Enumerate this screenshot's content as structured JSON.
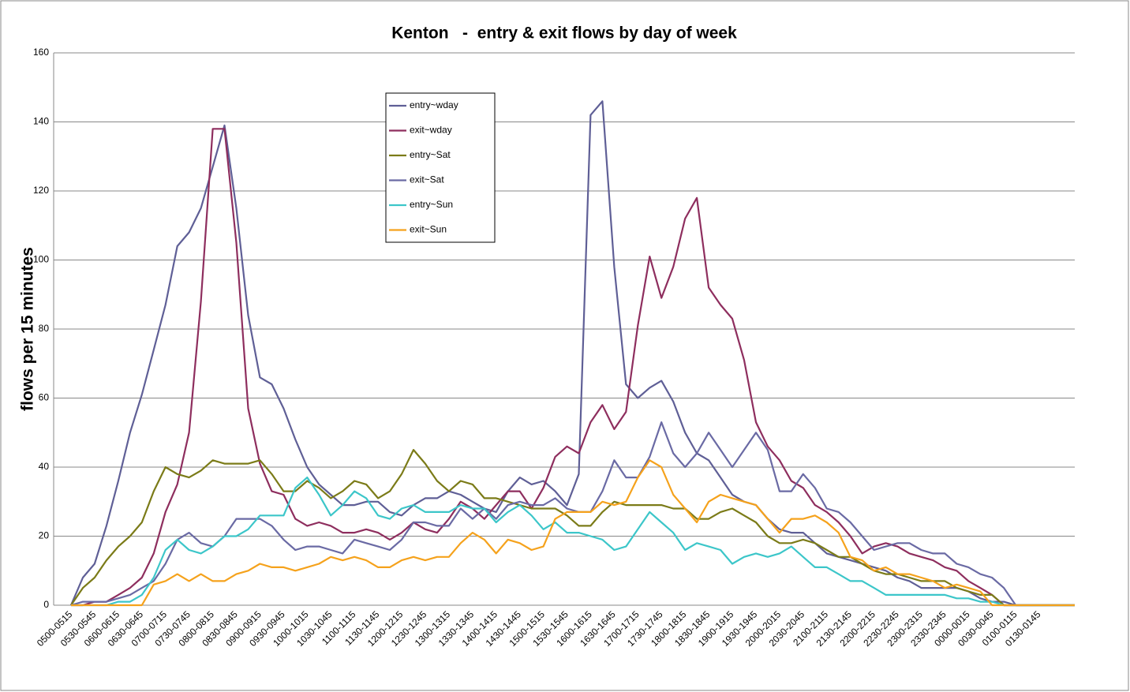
{
  "chart_data": {
    "type": "line",
    "title": "Kenton   -  entry & exit flows by day of week",
    "y_label": "flows per 15 minutes",
    "categories": [
      "0500-0515",
      null,
      "0530-0545",
      null,
      "0600-0615",
      null,
      "0630-0645",
      null,
      "0700-0715",
      null,
      "0730-0745",
      null,
      "0800-0815",
      null,
      "0830-0845",
      null,
      "0900-0915",
      null,
      "0930-0945",
      null,
      "1000-1015",
      null,
      "1030-1045",
      null,
      "1100-1115",
      null,
      "1130-1145",
      null,
      "1200-1215",
      null,
      "1230-1245",
      null,
      "1300-1315",
      null,
      "1330-1345",
      null,
      "1400-1415",
      null,
      "1430-1445",
      null,
      "1500-1515",
      null,
      "1530-1545",
      null,
      "1600-1615",
      null,
      "1630-1645",
      null,
      "1700-1715",
      null,
      "1730-1745",
      null,
      "1800-1815",
      null,
      "1830-1845",
      null,
      "1900-1915",
      null,
      "1930-1945",
      null,
      "2000-2015",
      null,
      "2030-2045",
      null,
      "2100-2115",
      null,
      "2130-2145",
      null,
      "2200-2215",
      null,
      "2230-2245",
      null,
      "2300-2315",
      null,
      "2330-2345",
      null,
      "0000-0015",
      null,
      "0030-0045",
      null,
      "0100-0115",
      null,
      "0130-0145",
      null,
      null,
      null
    ],
    "series": [
      {
        "name": "entry~wday",
        "color": "#5f5f96",
        "values": [
          0,
          8,
          12,
          23,
          36,
          50,
          61,
          74,
          87,
          104,
          108,
          115,
          127,
          139,
          115,
          84,
          66,
          64,
          57,
          48,
          40,
          35,
          32,
          29,
          29,
          30,
          30,
          27,
          26,
          29,
          31,
          31,
          33,
          32,
          30,
          28,
          27,
          33,
          37,
          35,
          36,
          33,
          29,
          38,
          142,
          146,
          98,
          64,
          60,
          63,
          65,
          59,
          50,
          44,
          42,
          37,
          32,
          30,
          29,
          25,
          22,
          21,
          21,
          18,
          15,
          14,
          13,
          12,
          11,
          10,
          8,
          7,
          5,
          5,
          5,
          5,
          4,
          2,
          1,
          1,
          0,
          0,
          0,
          0,
          0,
          0
        ]
      },
      {
        "name": "exit~wday",
        "color": "#8e2e5e",
        "values": [
          0,
          0,
          1,
          1,
          3,
          5,
          8,
          15,
          27,
          35,
          50,
          88,
          138,
          138,
          105,
          57,
          41,
          33,
          32,
          25,
          23,
          24,
          23,
          21,
          21,
          22,
          21,
          19,
          21,
          24,
          22,
          21,
          25,
          30,
          28,
          25,
          29,
          33,
          33,
          28,
          34,
          43,
          46,
          44,
          53,
          58,
          51,
          56,
          81,
          101,
          89,
          98,
          112,
          118,
          92,
          87,
          83,
          71,
          53,
          46,
          42,
          36,
          34,
          29,
          27,
          24,
          20,
          15,
          17,
          18,
          17,
          15,
          14,
          13,
          11,
          10,
          7,
          5,
          3,
          0,
          0,
          0,
          0,
          0,
          0,
          0
        ]
      },
      {
        "name": "entry~Sat",
        "color": "#7b7b18",
        "values": [
          0,
          5,
          8,
          13,
          17,
          20,
          24,
          33,
          40,
          38,
          37,
          39,
          42,
          41,
          41,
          41,
          42,
          38,
          33,
          33,
          36,
          34,
          31,
          33,
          36,
          35,
          31,
          33,
          38,
          45,
          41,
          36,
          33,
          36,
          35,
          31,
          31,
          30,
          29,
          28,
          28,
          28,
          26,
          23,
          23,
          27,
          30,
          29,
          29,
          29,
          29,
          28,
          28,
          25,
          25,
          27,
          28,
          26,
          24,
          20,
          18,
          18,
          19,
          18,
          16,
          14,
          14,
          12,
          10,
          9,
          9,
          8,
          7,
          7,
          7,
          5,
          4,
          3,
          3,
          0,
          0,
          0,
          0,
          0,
          0,
          0
        ]
      },
      {
        "name": "exit~Sat",
        "color": "#6a6aa4",
        "values": [
          0,
          1,
          1,
          1,
          2,
          3,
          5,
          7,
          12,
          19,
          21,
          18,
          17,
          20,
          25,
          25,
          25,
          23,
          19,
          16,
          17,
          17,
          16,
          15,
          19,
          18,
          17,
          16,
          19,
          24,
          24,
          23,
          23,
          28,
          25,
          28,
          25,
          29,
          30,
          29,
          29,
          31,
          28,
          27,
          27,
          33,
          42,
          37,
          37,
          43,
          53,
          44,
          40,
          44,
          50,
          45,
          40,
          45,
          50,
          45,
          33,
          33,
          38,
          34,
          28,
          27,
          24,
          20,
          16,
          17,
          18,
          18,
          16,
          15,
          15,
          12,
          11,
          9,
          8,
          5,
          0,
          0,
          0,
          0,
          0,
          0
        ]
      },
      {
        "name": "entry~Sun",
        "color": "#3cc6c9",
        "values": [
          0,
          0,
          0,
          0,
          1,
          1,
          3,
          8,
          16,
          19,
          16,
          15,
          17,
          20,
          20,
          22,
          26,
          26,
          26,
          34,
          37,
          32,
          26,
          29,
          33,
          31,
          26,
          25,
          28,
          29,
          27,
          27,
          27,
          29,
          28,
          28,
          24,
          27,
          29,
          26,
          22,
          24,
          21,
          21,
          20,
          19,
          16,
          17,
          22,
          27,
          24,
          21,
          16,
          18,
          17,
          16,
          12,
          14,
          15,
          14,
          15,
          17,
          14,
          11,
          11,
          9,
          7,
          7,
          5,
          3,
          3,
          3,
          3,
          3,
          3,
          2,
          2,
          1,
          1,
          0,
          0,
          0,
          0,
          0,
          0,
          0
        ]
      },
      {
        "name": "exit~Sun",
        "color": "#f5a21c",
        "values": [
          0,
          0,
          0,
          0,
          0,
          0,
          0,
          6,
          7,
          9,
          7,
          9,
          7,
          7,
          9,
          10,
          12,
          11,
          11,
          10,
          11,
          12,
          14,
          13,
          14,
          13,
          11,
          11,
          13,
          14,
          13,
          14,
          14,
          18,
          21,
          19,
          15,
          19,
          18,
          16,
          17,
          25,
          27,
          27,
          27,
          30,
          29,
          30,
          37,
          42,
          40,
          32,
          28,
          24,
          30,
          32,
          31,
          30,
          29,
          25,
          21,
          25,
          25,
          26,
          24,
          21,
          14,
          13,
          10,
          11,
          9,
          9,
          8,
          7,
          5,
          6,
          5,
          4,
          0,
          0,
          0,
          0,
          0,
          0,
          0,
          0
        ]
      }
    ],
    "ylim": [
      0,
      160
    ],
    "yticks": [
      0,
      20,
      40,
      60,
      80,
      100,
      120,
      140,
      160
    ],
    "grid": true,
    "legend": "top-center"
  }
}
